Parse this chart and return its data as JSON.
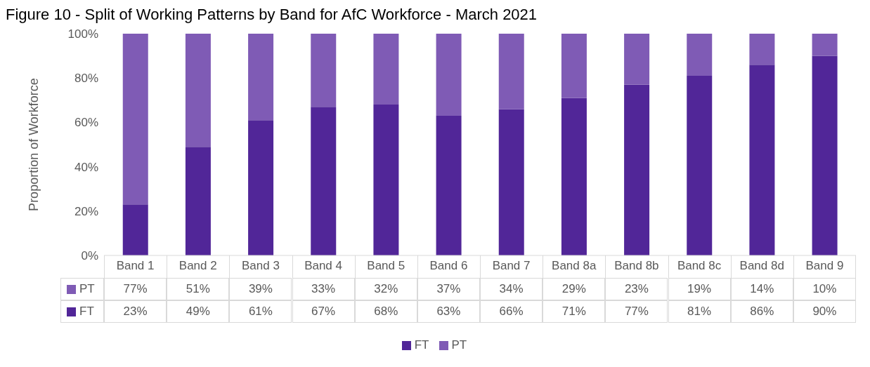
{
  "chart_data": {
    "type": "bar",
    "title": "Figure 10 - Split of Working Patterns by Band for AfC Workforce - March 2021",
    "ylabel": "Proportion of Workforce",
    "categories": [
      "Band 1",
      "Band 2",
      "Band 3",
      "Band 4",
      "Band 5",
      "Band 6",
      "Band 7",
      "Band 8a",
      "Band 8b",
      "Band 8c",
      "Band 8d",
      "Band 9"
    ],
    "series": [
      {
        "name": "FT",
        "color": "#512698",
        "values": [
          23,
          49,
          61,
          67,
          68,
          63,
          66,
          71,
          77,
          81,
          86,
          90
        ],
        "value_labels": [
          "23%",
          "49%",
          "61%",
          "67%",
          "68%",
          "63%",
          "66%",
          "71%",
          "77%",
          "81%",
          "86%",
          "90%"
        ]
      },
      {
        "name": "PT",
        "color": "#7f5bb5",
        "values": [
          77,
          51,
          39,
          33,
          32,
          37,
          34,
          29,
          23,
          19,
          14,
          10
        ],
        "value_labels": [
          "77%",
          "51%",
          "39%",
          "33%",
          "32%",
          "37%",
          "34%",
          "29%",
          "23%",
          "19%",
          "14%",
          "10%"
        ]
      }
    ],
    "stacked": true,
    "ylim": [
      0,
      100
    ],
    "yticks": [
      {
        "value": 0,
        "label": "0%"
      },
      {
        "value": 20,
        "label": "20%"
      },
      {
        "value": 40,
        "label": "40%"
      },
      {
        "value": 60,
        "label": "60%"
      },
      {
        "value": 80,
        "label": "80%"
      },
      {
        "value": 100,
        "label": "100%"
      }
    ],
    "legend": "bottom"
  }
}
